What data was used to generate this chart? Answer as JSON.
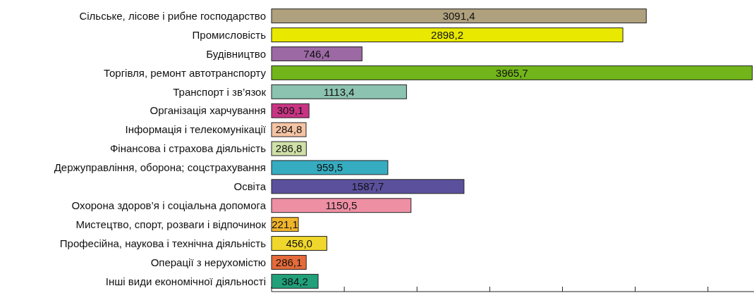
{
  "chart_data": {
    "type": "bar",
    "orientation": "horizontal",
    "data_labels": true,
    "categories": [
      "Сільське, лісове і рибне господарство",
      "Промисловість",
      "Будівництво",
      "Торгівля, ремонт автотранспорту",
      "Транспорт і зв’язок",
      "Організація харчування",
      "Інформація і телекомунікації",
      "Фінансова і страхова діяльність",
      "Держуправління, оборона; соцстрахування",
      "Освіта",
      "Охорона здоров’я і соціальна допомога",
      "Мистецтво, спорт, розваги і відпочинок",
      "Професійна, наукова і технічна діяльність",
      "Операції з нерухомістю",
      "Інші види економічної діяльності"
    ],
    "values": [
      3091.4,
      2898.2,
      746.4,
      3965.7,
      1113.4,
      309.1,
      284.8,
      286.8,
      959.5,
      1587.7,
      1150.5,
      221.1,
      456.0,
      286.1,
      384.2
    ],
    "value_labels": [
      "3091,4",
      "2898,2",
      "746,4",
      "3965,7",
      "1113,4",
      "309,1",
      "284,8",
      "286,8",
      "959,5",
      "1587,7",
      "1150,5",
      "221,1",
      "456,0",
      "286,1",
      "384,2"
    ],
    "colors": [
      "#b0a17e",
      "#e8e800",
      "#9c69a4",
      "#72b51b",
      "#8cc2b0",
      "#c83484",
      "#f5c4a4",
      "#cfe0a8",
      "#36acc0",
      "#5b509c",
      "#ee8fa4",
      "#f1b52c",
      "#f0d72c",
      "#e56b3a",
      "#21a07a"
    ],
    "xlim": [
      0,
      3980
    ],
    "xticks": [
      {
        "value": 0,
        "label": null
      },
      {
        "value": 600,
        "label": null
      },
      {
        "value": 1200,
        "label": null
      },
      {
        "value": 1800,
        "label": null
      },
      {
        "value": 2400,
        "label": null
      },
      {
        "value": 3000,
        "label": null
      },
      {
        "value": 3600,
        "label": null
      }
    ],
    "tick_labels": "y"
  }
}
